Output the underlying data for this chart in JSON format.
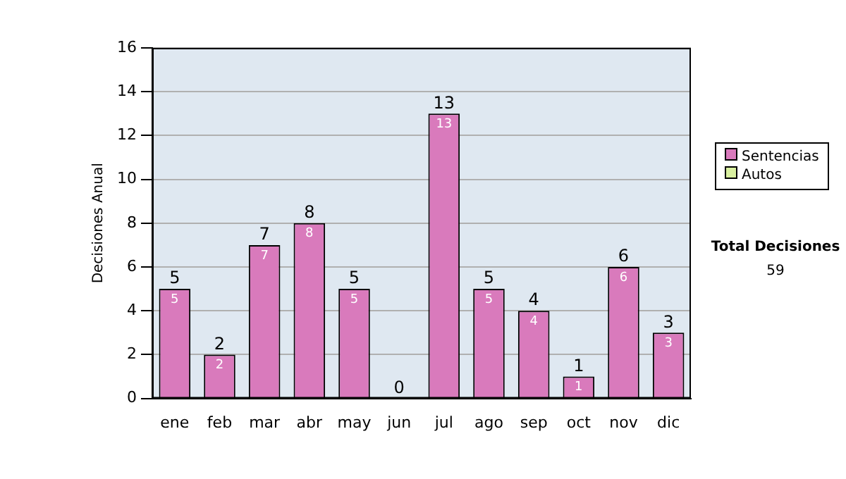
{
  "chart_data": {
    "type": "bar",
    "ylabel": "Decisiones Anual",
    "categories": [
      "ene",
      "feb",
      "mar",
      "abr",
      "may",
      "jun",
      "jul",
      "ago",
      "sep",
      "oct",
      "nov",
      "dic"
    ],
    "series": [
      {
        "name": "Sentencias",
        "color": "#d97abc",
        "values": [
          5,
          2,
          7,
          8,
          5,
          0,
          13,
          5,
          4,
          1,
          6,
          3
        ],
        "value_labels": [
          "5",
          "2",
          "7",
          "8",
          "5",
          null,
          "13",
          "5",
          "4",
          "1",
          "6",
          "3"
        ]
      },
      {
        "name": "Autos",
        "color": "#d9f0a0",
        "values": [
          0,
          0,
          0,
          0,
          0,
          0,
          0,
          0,
          0,
          0,
          0,
          0
        ]
      }
    ],
    "stacked": true,
    "totals": [
      "5",
      "2",
      "7",
      "8",
      "5",
      "0",
      "13",
      "5",
      "4",
      "1",
      "6",
      "3"
    ],
    "ylim": [
      0,
      16
    ],
    "yticks": [
      0,
      2,
      4,
      6,
      8,
      10,
      12,
      14,
      16
    ],
    "grid": "y",
    "legend": "right",
    "annotations": [
      "Total Decisiones",
      "59"
    ]
  }
}
